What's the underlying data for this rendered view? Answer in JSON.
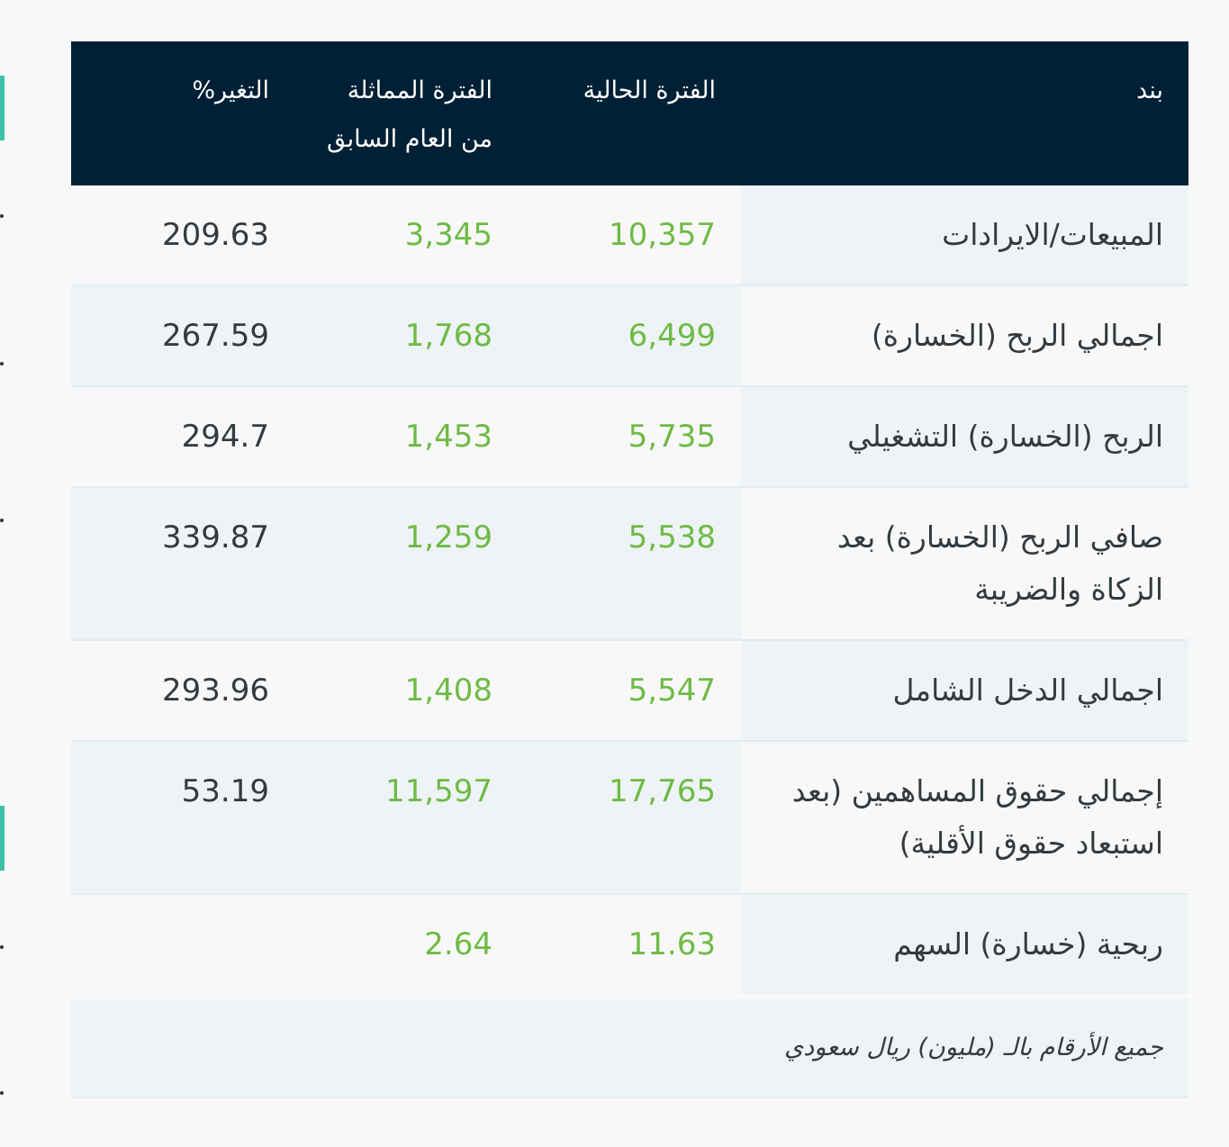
{
  "header": {
    "item": "بند",
    "current": "الفترة الحالية",
    "previous": "الفترة المماثلة من العام السابق",
    "change": "التغير%"
  },
  "rows": [
    {
      "item": "المبيعات/الايرادات",
      "current": "10,357",
      "previous": "3,345",
      "change": "209.63"
    },
    {
      "item": "اجمالي الربح (الخسارة)",
      "current": "6,499",
      "previous": "1,768",
      "change": "267.59"
    },
    {
      "item": "الربح (الخسارة) التشغيلي",
      "current": "5,735",
      "previous": "1,453",
      "change": "294.7"
    },
    {
      "item": "صافي الربح (الخسارة) بعد الزكاة والضريبة",
      "current": "5,538",
      "previous": "1,259",
      "change": "339.87"
    },
    {
      "item": "اجمالي الدخل الشامل",
      "current": "5,547",
      "previous": "1,408",
      "change": "293.96"
    },
    {
      "item": "إجمالي حقوق المساهمين (بعد استبعاد حقوق الأقلية)",
      "current": "17,765",
      "previous": "11,597",
      "change": "53.19"
    },
    {
      "item": "ربحية (خسارة) السهم",
      "current": "11.63",
      "previous": "2.64",
      "change": ""
    }
  ],
  "footnote": "جميع الأرقام بالـ (مليون) ريال سعودي",
  "colors": {
    "header_bg": "#002035",
    "value_green": "#6dbb45",
    "text_dark": "#333b40",
    "row_alt": "#eef3f6"
  }
}
